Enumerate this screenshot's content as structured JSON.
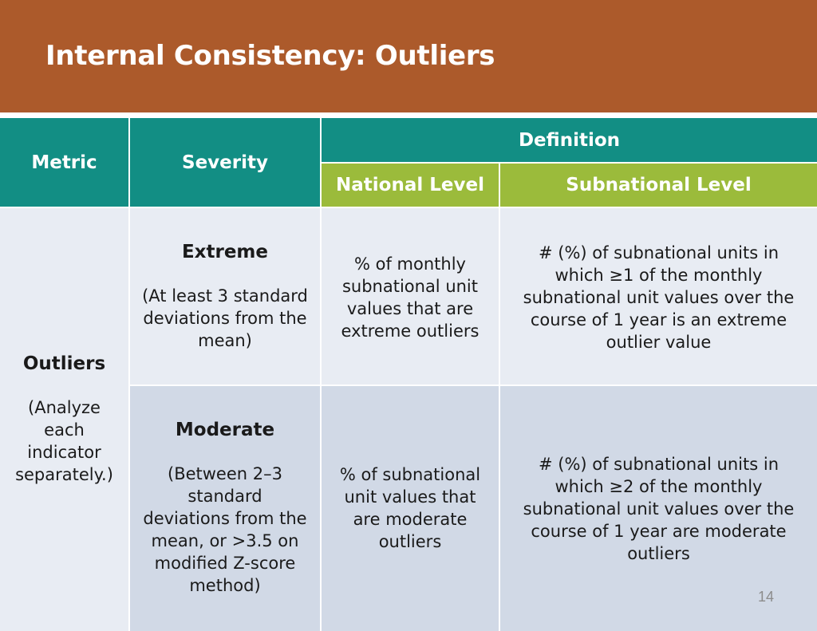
{
  "title": "Internal Consistency: Outliers",
  "colors": {
    "title_bar": "#ac5a2b",
    "header_teal": "#128e84",
    "header_green": "#9bbb3b",
    "row_light": "#e8ecf3",
    "row_dark": "#d1d9e6"
  },
  "table": {
    "headers": {
      "metric": "Metric",
      "severity": "Severity",
      "definition": "Definition",
      "national": "National Level",
      "subnational": "Subnational Level"
    },
    "metric": {
      "label": "Outliers",
      "note": [
        "(Analyze",
        "each",
        "indicator",
        "separately.)"
      ]
    },
    "rows": [
      {
        "severity_label": "Extreme",
        "severity_note": [
          "(At least 3 standard",
          "deviations from the",
          "mean)"
        ],
        "national": [
          "% of monthly",
          "subnational unit",
          "values that are",
          "extreme outliers"
        ],
        "subnational": [
          "# (%) of subnational units in",
          "which ≥1 of the monthly",
          "subnational unit values over the",
          "course of 1 year is an extreme",
          "outlier value"
        ]
      },
      {
        "severity_label": "Moderate",
        "severity_note": [
          "(Between 2–3",
          "standard",
          "deviations from the",
          "mean, or >3.5 on",
          "modified Z-score",
          "method)"
        ],
        "national": [
          "% of subnational",
          "unit values that",
          "are moderate",
          "outliers"
        ],
        "subnational": [
          "# (%) of subnational units in",
          "which ≥2 of the monthly",
          "subnational unit values over the",
          "course of 1 year are moderate",
          "outliers"
        ]
      }
    ]
  },
  "page_number": "14"
}
